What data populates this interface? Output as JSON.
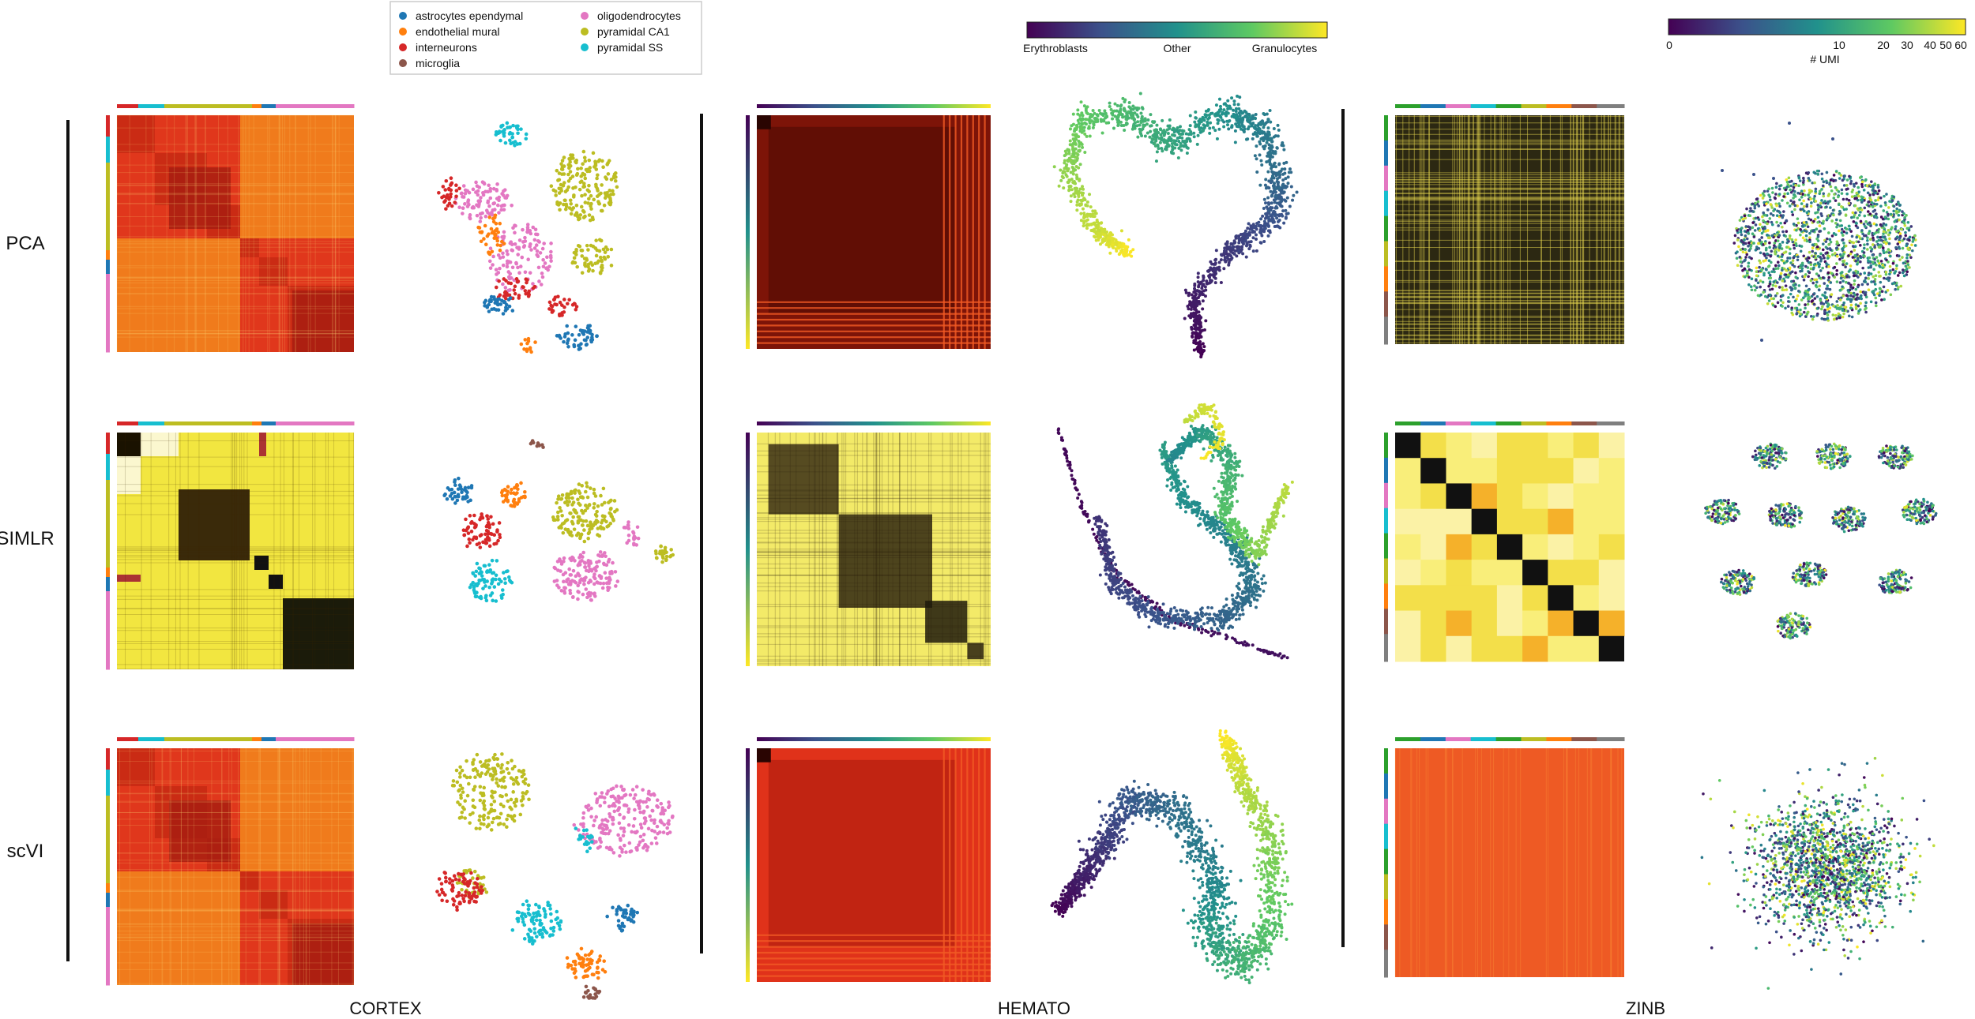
{
  "figure": {
    "row_labels": [
      "PCA",
      "SIMLR",
      "scVI"
    ],
    "column_labels": [
      "CORTEX",
      "HEMATO",
      "ZINB"
    ]
  },
  "cortex_legend": {
    "items": [
      {
        "label": "astrocytes ependymal",
        "color": "#1f77b4"
      },
      {
        "label": "endothelial mural",
        "color": "#ff7f0e"
      },
      {
        "label": "interneurons",
        "color": "#d62728"
      },
      {
        "label": "microglia",
        "color": "#8c564b"
      },
      {
        "label": "oligodendrocytes",
        "color": "#e377c2"
      },
      {
        "label": "pyramidal CA1",
        "color": "#bcbd22"
      },
      {
        "label": "pyramidal SS",
        "color": "#17becf"
      }
    ]
  },
  "hemato_colorbar": {
    "labels": [
      "Erythroblasts",
      "Other",
      "Granulocytes"
    ],
    "colormap": "viridis"
  },
  "zinb_colorbar": {
    "title": "# UMI",
    "ticks": [
      "0",
      "10",
      "20",
      "30",
      "40",
      "50",
      "60"
    ],
    "colormap": "viridis"
  },
  "panels": [
    {
      "row": "PCA",
      "column": "CORTEX",
      "heatmap_style": "red-orange blocks",
      "embedding": "t-SNE colored by cell type"
    },
    {
      "row": "PCA",
      "column": "HEMATO",
      "heatmap_style": "dark red",
      "embedding": "continuous trajectory"
    },
    {
      "row": "PCA",
      "column": "ZINB",
      "heatmap_style": "dark grid with yellow lines",
      "embedding": "single blob colored by UMI"
    },
    {
      "row": "SIMLR",
      "column": "CORTEX",
      "heatmap_style": "yellow/black blocks",
      "embedding": "separated clusters"
    },
    {
      "row": "SIMLR",
      "column": "HEMATO",
      "heatmap_style": "yellow/black blocks",
      "embedding": "fragmented trajectory"
    },
    {
      "row": "SIMLR",
      "column": "ZINB",
      "heatmap_style": "block diagonal",
      "embedding": "nine clusters colored by UMI"
    },
    {
      "row": "scVI",
      "column": "CORTEX",
      "heatmap_style": "red-orange blocks",
      "embedding": "t-SNE colored by cell type"
    },
    {
      "row": "scVI",
      "column": "HEMATO",
      "heatmap_style": "red",
      "embedding": "continuous trajectory"
    },
    {
      "row": "scVI",
      "column": "ZINB",
      "heatmap_style": "uniform orange",
      "embedding": "single blob colored by UMI"
    }
  ]
}
